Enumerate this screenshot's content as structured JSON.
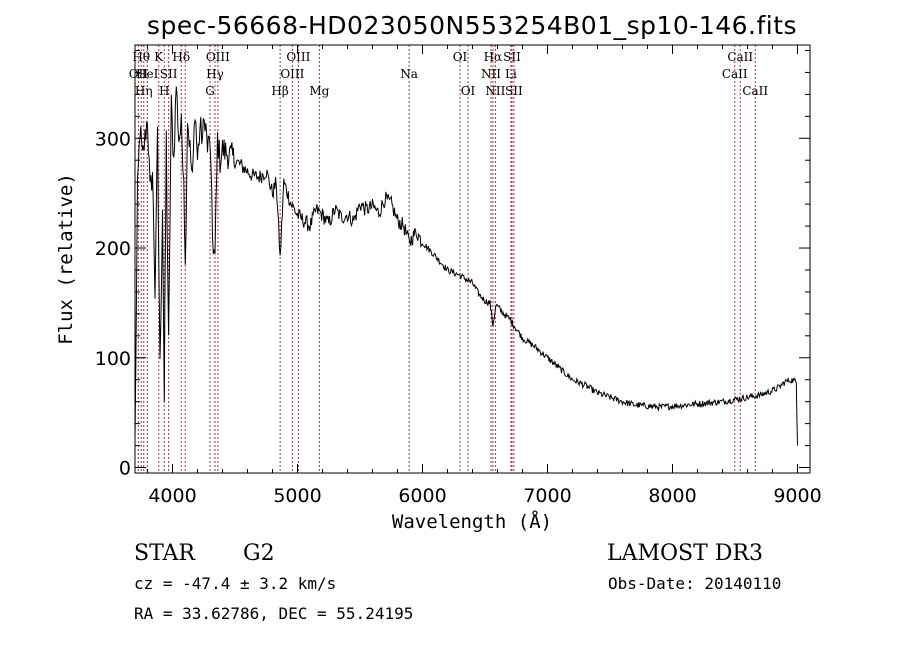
{
  "chart_data": {
    "type": "line",
    "title": "spec-56668-HD023050N553254B01_sp10-146.fits",
    "xlabel": "Wavelength (Å)",
    "ylabel": "Flux (relative)",
    "xlim": [
      3700,
      9100
    ],
    "ylim": [
      -5,
      385
    ],
    "xticks": [
      4000,
      5000,
      6000,
      7000,
      8000,
      9000
    ],
    "yticks": [
      0,
      100,
      200,
      300
    ],
    "series": [
      {
        "name": "spectrum",
        "x": [
          3700,
          3720,
          3740,
          3760,
          3780,
          3800,
          3820,
          3840,
          3860,
          3880,
          3900,
          3920,
          3934,
          3950,
          3969,
          3990,
          4010,
          4030,
          4050,
          4070,
          4090,
          4102,
          4120,
          4140,
          4160,
          4180,
          4200,
          4220,
          4240,
          4260,
          4280,
          4300,
          4320,
          4340,
          4360,
          4380,
          4400,
          4450,
          4500,
          4550,
          4600,
          4650,
          4700,
          4750,
          4800,
          4830,
          4861,
          4890,
          4920,
          4950,
          5000,
          5050,
          5100,
          5150,
          5200,
          5250,
          5300,
          5350,
          5400,
          5450,
          5500,
          5550,
          5600,
          5650,
          5700,
          5750,
          5800,
          5850,
          5893,
          5950,
          6000,
          6100,
          6200,
          6300,
          6400,
          6450,
          6500,
          6540,
          6563,
          6590,
          6650,
          6700,
          6800,
          6900,
          7000,
          7100,
          7200,
          7300,
          7400,
          7500,
          7600,
          7700,
          7800,
          7900,
          8000,
          8100,
          8200,
          8300,
          8400,
          8500,
          8600,
          8700,
          8800,
          8850,
          8900,
          8950,
          8990,
          9000
        ],
        "y": [
          20,
          250,
          310,
          280,
          300,
          320,
          250,
          270,
          160,
          300,
          90,
          240,
          60,
          300,
          110,
          330,
          280,
          350,
          300,
          310,
          270,
          180,
          320,
          290,
          260,
          330,
          280,
          310,
          300,
          320,
          290,
          300,
          210,
          190,
          300,
          280,
          290,
          285,
          280,
          275,
          270,
          265,
          265,
          270,
          250,
          260,
          190,
          260,
          250,
          240,
          230,
          225,
          220,
          235,
          230,
          222,
          235,
          228,
          230,
          225,
          240,
          235,
          238,
          232,
          245,
          240,
          225,
          220,
          205,
          215,
          205,
          193,
          180,
          175,
          168,
          158,
          152,
          150,
          130,
          148,
          140,
          135,
          118,
          110,
          100,
          90,
          80,
          75,
          68,
          64,
          60,
          57,
          56,
          55,
          56,
          57,
          58,
          59,
          60,
          62,
          64,
          66,
          70,
          73,
          78,
          80,
          78,
          20
        ]
      }
    ],
    "lines": [
      {
        "wl": 3727,
        "label": "OII",
        "row": 2
      },
      {
        "wl": 3750,
        "label": "Hθ",
        "row": 1
      },
      {
        "wl": 3770,
        "label": "Hη",
        "row": 3
      },
      {
        "wl": 3798,
        "label": "HeI",
        "row": 2
      },
      {
        "wl": 3890,
        "label": "K",
        "row": 1
      },
      {
        "wl": 3934,
        "label": "H",
        "row": 3
      },
      {
        "wl": 3969,
        "label": "SII",
        "row": 2
      },
      {
        "wl": 4070,
        "label": "Hδ",
        "row": 1
      },
      {
        "wl": 4102,
        "label": "",
        "row": 1
      },
      {
        "wl": 4300,
        "label": "G",
        "row": 3
      },
      {
        "wl": 4340,
        "label": "Hγ",
        "row": 2
      },
      {
        "wl": 4363,
        "label": "OIII",
        "row": 1
      },
      {
        "wl": 4861,
        "label": "Hβ",
        "row": 3
      },
      {
        "wl": 4959,
        "label": "OIII",
        "row": 2
      },
      {
        "wl": 5007,
        "label": "OIII",
        "row": 1
      },
      {
        "wl": 5175,
        "label": "Mg",
        "row": 3
      },
      {
        "wl": 5893,
        "label": "Na",
        "row": 2
      },
      {
        "wl": 6300,
        "label": "OI",
        "row": 1
      },
      {
        "wl": 6364,
        "label": "OI",
        "row": 3
      },
      {
        "wl": 6548,
        "label": "NII",
        "row": 2
      },
      {
        "wl": 6563,
        "label": "Hα",
        "row": 1
      },
      {
        "wl": 6583,
        "label": "NII",
        "row": 3
      },
      {
        "wl": 6707,
        "label": "Li",
        "row": 2
      },
      {
        "wl": 6716,
        "label": "SII",
        "row": 1
      },
      {
        "wl": 6731,
        "label": "SII",
        "row": 3
      },
      {
        "wl": 8498,
        "label": "CaII",
        "row": 2
      },
      {
        "wl": 8542,
        "label": "CaII",
        "row": 1
      },
      {
        "wl": 8662,
        "label": "CaII",
        "row": 3
      }
    ]
  },
  "info": {
    "object_class": "STAR",
    "subclass": "G2",
    "survey": "LAMOST DR3",
    "redshift": "cz = -47.4 ± 3.2 km/s",
    "obs_date": "Obs-Date: 20140110",
    "coords": "RA =  33.62786, DEC =  55.24195"
  }
}
